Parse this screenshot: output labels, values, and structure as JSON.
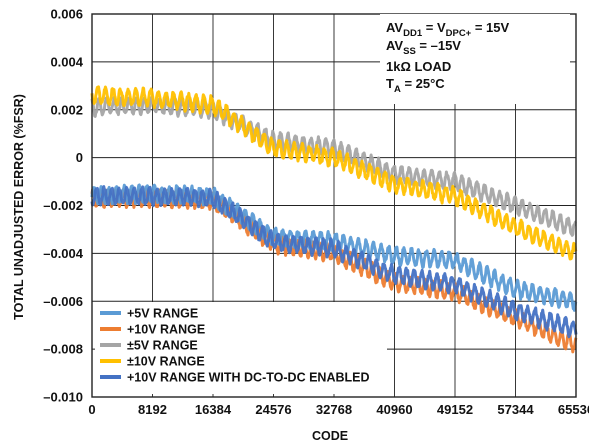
{
  "chart_data": {
    "type": "line",
    "xlabel": "CODE",
    "ylabel": "TOTAL UNADJUSTED ERROR (%FSR)",
    "xlim": [
      0,
      65536
    ],
    "ylim": [
      -0.01,
      0.006
    ],
    "x_ticks": [
      0,
      8192,
      16384,
      24576,
      32768,
      40960,
      49152,
      57344,
      65536
    ],
    "x_tick_labels": [
      "0",
      "8192",
      "16384",
      "24576",
      "32768",
      "40960",
      "49152",
      "57344",
      "65536"
    ],
    "y_ticks": [
      -0.01,
      -0.008,
      -0.006,
      -0.004,
      -0.002,
      0,
      0.002,
      0.004,
      0.006
    ],
    "y_tick_labels": [
      "–0.010",
      "–0.008",
      "–0.006",
      "–0.004",
      "–0.002",
      "0",
      "0.002",
      "0.004",
      "0.006"
    ],
    "grid": true,
    "legend_position": "bottom-left",
    "annotation": {
      "line1": {
        "main": "AV",
        "sub": "DD1",
        "mid": " = V",
        "sub2": "DPC+",
        "tail": " = 15V"
      },
      "line2": {
        "main": "AV",
        "sub": "SS",
        "tail": " = –15V"
      },
      "line3": {
        "text": "1kΩ LOAD"
      },
      "line4": {
        "main": "T",
        "sub": "A",
        "tail": " = 25°C"
      }
    },
    "series": [
      {
        "name": "+5V RANGE",
        "color": "#5b9bd5",
        "x": [
          0,
          8192,
          16384,
          24576,
          32768,
          40960,
          49152,
          57344,
          65536
        ],
        "y": [
          -0.0016,
          -0.0015,
          -0.0016,
          -0.0033,
          -0.0035,
          -0.0041,
          -0.0043,
          -0.0055,
          -0.006
        ]
      },
      {
        "name": "+10V RANGE",
        "color": "#ed7d31",
        "x": [
          0,
          8192,
          16384,
          24576,
          32768,
          40960,
          49152,
          57344,
          65536
        ],
        "y": [
          -0.0017,
          -0.0017,
          -0.0018,
          -0.0036,
          -0.004,
          -0.0052,
          -0.0056,
          -0.0067,
          -0.0078
        ]
      },
      {
        "name": "±5V RANGE",
        "color": "#a5a5a5",
        "x": [
          0,
          8192,
          16384,
          24576,
          32768,
          40960,
          49152,
          57344,
          65536
        ],
        "y": [
          0.0021,
          0.0022,
          0.002,
          0.0007,
          0.0004,
          -0.0007,
          -0.001,
          -0.002,
          -0.003
        ]
      },
      {
        "name": "±10V RANGE",
        "color": "#ffc000",
        "x": [
          0,
          8192,
          16384,
          24576,
          32768,
          40960,
          49152,
          57344,
          65536
        ],
        "y": [
          0.0026,
          0.0025,
          0.0022,
          0.0004,
          0.0,
          -0.0011,
          -0.0016,
          -0.0029,
          -0.004
        ]
      },
      {
        "name": "+10V RANGE WITH DC-TO-DC ENABLED",
        "color": "#4472c4",
        "x": [
          0,
          8192,
          16384,
          24576,
          32768,
          40960,
          49152,
          57344,
          65536
        ],
        "y": [
          -0.0016,
          -0.0016,
          -0.0017,
          -0.0035,
          -0.0038,
          -0.0049,
          -0.0053,
          -0.0064,
          -0.0072
        ]
      }
    ]
  }
}
